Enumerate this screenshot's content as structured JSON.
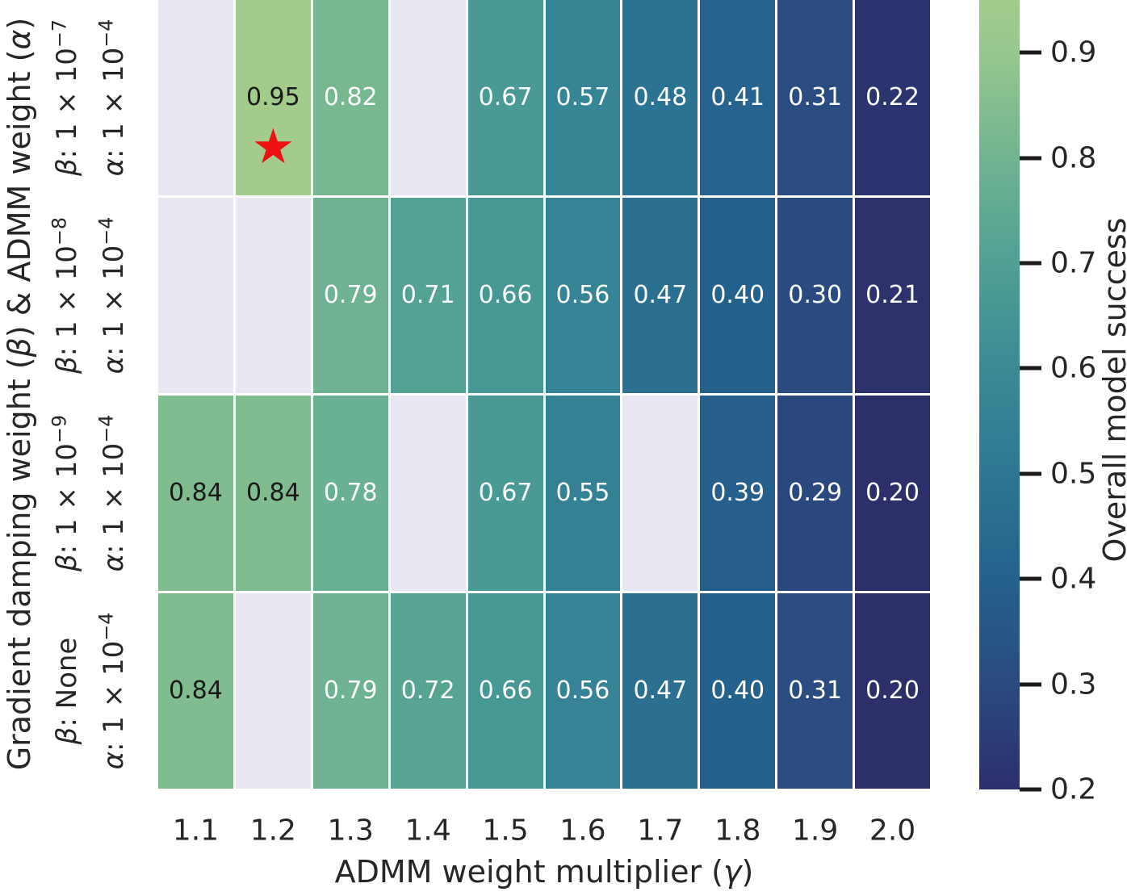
{
  "chart_data": {
    "type": "heatmap",
    "xlabel_parts": [
      {
        "t": "ADMM weight multiplier ("
      },
      {
        "t": "γ",
        "italic": true
      },
      {
        "t": ")"
      }
    ],
    "ylabel_parts": [
      {
        "t": "Gradient damping weight ("
      },
      {
        "t": "β",
        "italic": true
      },
      {
        "t": ") & ADMM weight ("
      },
      {
        "t": "α",
        "italic": true
      },
      {
        "t": ")"
      }
    ],
    "colorbar_label": "Overall model success",
    "x_categories": [
      "1.1",
      "1.2",
      "1.3",
      "1.4",
      "1.5",
      "1.6",
      "1.7",
      "1.8",
      "1.9",
      "2.0"
    ],
    "row_labels": [
      {
        "beta_symbol": "β",
        "beta_text": ": 1 × 10",
        "beta_sup": "−7",
        "alpha_symbol": "α",
        "alpha_text": ": 1 × 10",
        "alpha_sup": "−4"
      },
      {
        "beta_symbol": "β",
        "beta_text": ": 1 × 10",
        "beta_sup": "−8",
        "alpha_symbol": "α",
        "alpha_text": ": 1 × 10",
        "alpha_sup": "−4"
      },
      {
        "beta_symbol": "β",
        "beta_text": ": 1 × 10",
        "beta_sup": "−9",
        "alpha_symbol": "α",
        "alpha_text": ": 1 × 10",
        "alpha_sup": "−4"
      },
      {
        "beta_symbol": "β",
        "beta_text": ": None",
        "beta_sup": "",
        "alpha_symbol": "α",
        "alpha_text": ": 1 × 10",
        "alpha_sup": "−4"
      }
    ],
    "values": [
      [
        null,
        0.95,
        0.82,
        null,
        0.67,
        0.57,
        0.48,
        0.41,
        0.31,
        0.22
      ],
      [
        null,
        null,
        0.79,
        0.71,
        0.66,
        0.56,
        0.47,
        0.4,
        0.3,
        0.21
      ],
      [
        0.84,
        0.84,
        0.78,
        null,
        0.67,
        0.55,
        null,
        0.39,
        0.29,
        0.2
      ],
      [
        0.84,
        null,
        0.79,
        0.72,
        0.66,
        0.56,
        0.47,
        0.4,
        0.31,
        0.2
      ]
    ],
    "star": {
      "row": 0,
      "col": 1,
      "glyph": "★",
      "color": "#ee1111"
    },
    "vmin": 0.2,
    "vmax": 0.95,
    "colorbar_ticks": [
      0.9,
      0.8,
      0.7,
      0.6,
      0.5,
      0.4,
      0.3,
      0.2
    ],
    "colormap_stops": [
      [
        0.2,
        "#2d2f6b"
      ],
      [
        0.3,
        "#2a4a80"
      ],
      [
        0.4,
        "#25618d"
      ],
      [
        0.5,
        "#2d7793"
      ],
      [
        0.6,
        "#3a8b95"
      ],
      [
        0.7,
        "#50a094"
      ],
      [
        0.8,
        "#71b491"
      ],
      [
        0.9,
        "#96c78e"
      ],
      [
        0.95,
        "#a3cc8c"
      ]
    ],
    "missing_color": "#e9e8f2",
    "dark_text_threshold": 0.83,
    "annotation_colors": {
      "dark": "#1a1a1a",
      "light": "#ffffff"
    },
    "grid": false,
    "legend_position": "right"
  }
}
